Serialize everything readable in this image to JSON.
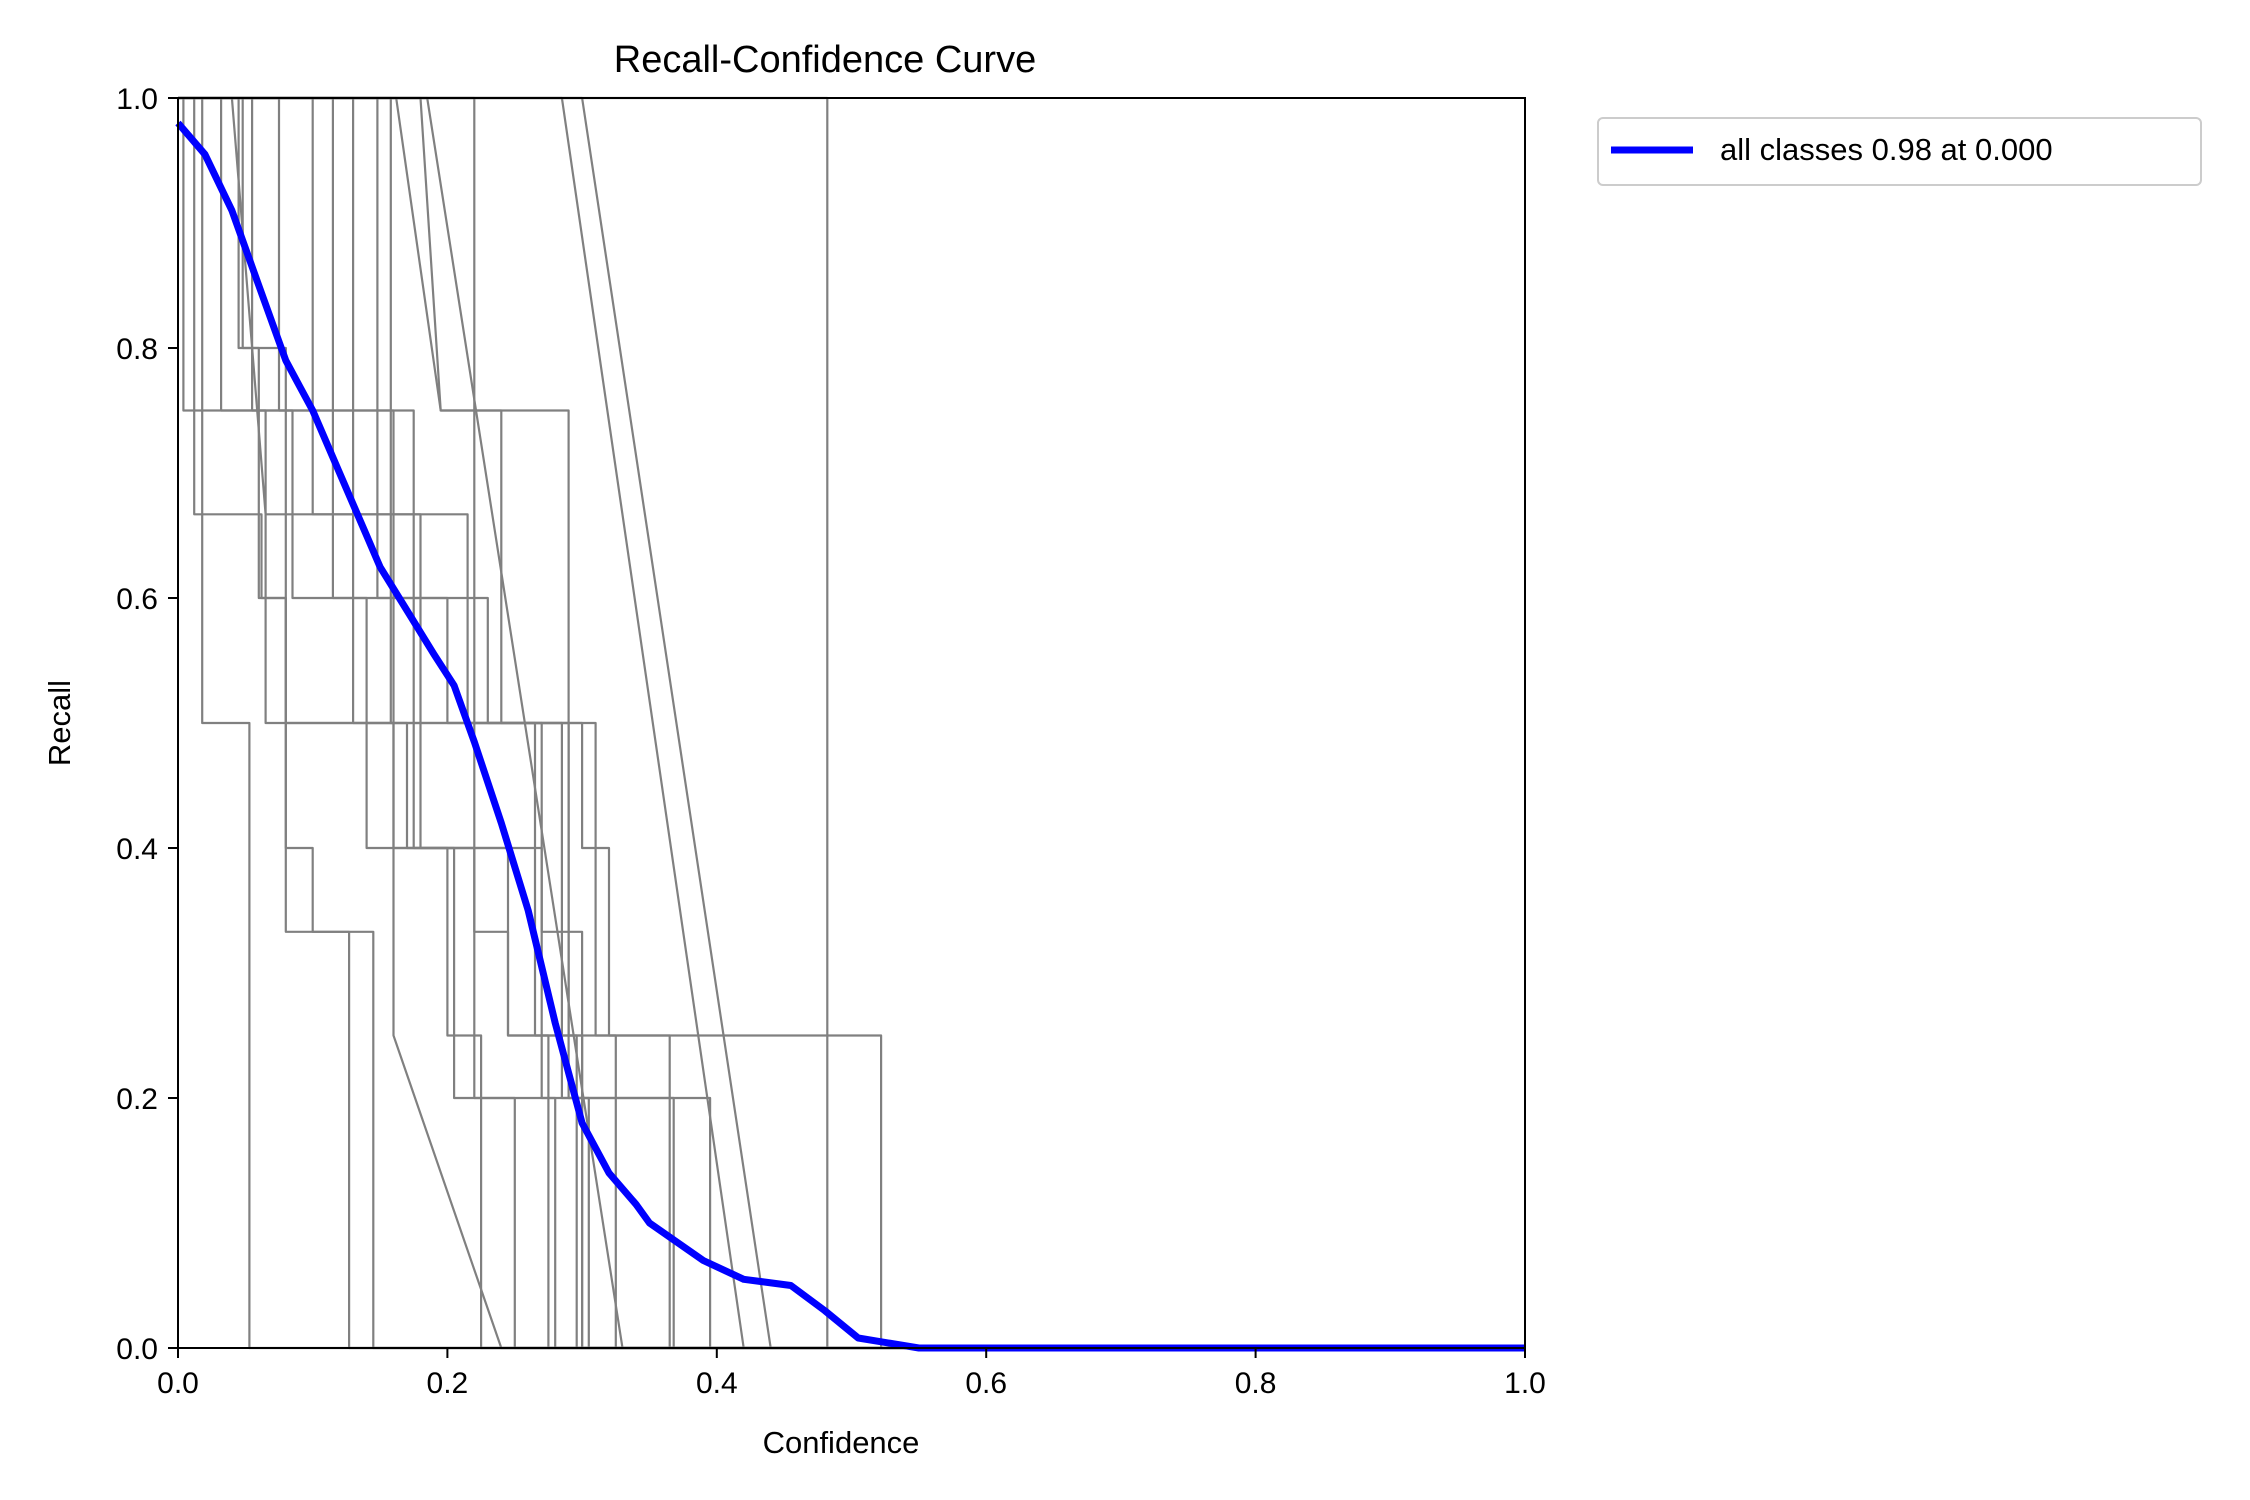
{
  "chart_data": {
    "type": "line",
    "title": "Recall-Confidence Curve",
    "xlabel": "Confidence",
    "ylabel": "Recall",
    "xlim": [
      0,
      1
    ],
    "ylim": [
      0,
      1
    ],
    "x_ticks": [
      "0.0",
      "0.2",
      "0.4",
      "0.6",
      "0.8",
      "1.0"
    ],
    "y_ticks": [
      "0.0",
      "0.2",
      "0.4",
      "0.6",
      "0.8",
      "1.0"
    ],
    "grid": false,
    "legend": {
      "placement": "outside top-right",
      "entries": [
        {
          "label": "all classes 0.98 at 0.000",
          "color": "#0000ff"
        }
      ]
    },
    "colors": {
      "class_curves": "#808080",
      "all_classes": "#0000ff"
    },
    "series": [
      {
        "name": "all classes 0.98 at 0.000",
        "color": "#0000ff",
        "x": [
          0.0,
          0.02,
          0.04,
          0.06,
          0.08,
          0.09,
          0.1,
          0.12,
          0.14,
          0.15,
          0.17,
          0.19,
          0.205,
          0.22,
          0.24,
          0.26,
          0.28,
          0.3,
          0.32,
          0.34,
          0.35,
          0.37,
          0.39,
          0.42,
          0.455,
          0.48,
          0.505,
          0.55,
          1.0
        ],
        "values": [
          0.98,
          0.955,
          0.91,
          0.85,
          0.79,
          0.77,
          0.75,
          0.7,
          0.65,
          0.625,
          0.59,
          0.555,
          0.53,
          0.485,
          0.42,
          0.35,
          0.26,
          0.18,
          0.14,
          0.115,
          0.1,
          0.085,
          0.07,
          0.055,
          0.05,
          0.03,
          0.008,
          0.0,
          0.0
        ]
      },
      {
        "color": "#808080",
        "x": [
          0.0,
          0.008,
          0.018,
          0.018,
          0.053,
          0.053,
          1.0
        ],
        "values": [
          1.0,
          1.0,
          1.0,
          0.5,
          0.5,
          0.0,
          0.0
        ]
      },
      {
        "color": "#808080",
        "x": [
          0.0,
          0.012,
          0.012,
          0.062,
          0.062,
          0.08,
          0.08,
          0.12,
          0.12,
          0.127,
          0.127,
          1.0
        ],
        "values": [
          1.0,
          1.0,
          0.667,
          0.667,
          0.6,
          0.6,
          0.333,
          0.333,
          0.333,
          0.333,
          0.0,
          0.0
        ]
      },
      {
        "color": "#808080",
        "x": [
          0.0,
          0.004,
          0.004,
          0.065,
          0.065,
          0.17,
          0.17,
          0.22,
          0.22,
          0.245,
          0.245,
          0.275,
          0.275,
          1.0
        ],
        "values": [
          1.0,
          1.0,
          0.75,
          0.75,
          0.5,
          0.5,
          0.4,
          0.4,
          0.333,
          0.333,
          0.25,
          0.25,
          0.0,
          0.0
        ]
      },
      {
        "color": "#808080",
        "x": [
          0.0,
          0.025,
          0.025,
          0.045,
          0.045,
          0.06,
          0.06,
          0.08,
          0.08,
          0.1,
          0.1,
          0.145,
          0.145,
          1.0
        ],
        "values": [
          1.0,
          1.0,
          1.0,
          1.0,
          0.8,
          0.8,
          0.6,
          0.6,
          0.4,
          0.4,
          0.333,
          0.333,
          0.0,
          0.0
        ]
      },
      {
        "color": "#808080",
        "x": [
          0.0,
          0.032,
          0.032,
          0.085,
          0.085,
          0.14,
          0.14,
          0.2,
          0.2,
          0.225,
          0.225,
          1.0
        ],
        "values": [
          1.0,
          1.0,
          0.75,
          0.75,
          0.6,
          0.6,
          0.4,
          0.4,
          0.25,
          0.25,
          0.0,
          0.0
        ]
      },
      {
        "color": "#808080",
        "x": [
          0.0,
          0.04,
          0.065,
          0.18,
          0.18,
          0.205,
          0.205,
          0.25,
          0.25,
          1.0
        ],
        "values": [
          1.0,
          1.0,
          0.667,
          0.667,
          0.4,
          0.4,
          0.2,
          0.2,
          0.0,
          0.0
        ]
      },
      {
        "color": "#808080",
        "x": [
          0.0,
          0.048,
          0.048,
          0.08,
          0.08,
          0.16,
          0.16,
          0.24,
          1.0
        ],
        "values": [
          1.0,
          1.0,
          0.8,
          0.8,
          0.5,
          0.5,
          0.25,
          0.0,
          0.0
        ]
      },
      {
        "color": "#808080",
        "x": [
          0.0,
          0.055,
          0.055,
          0.13,
          0.13,
          0.22,
          0.22,
          0.28,
          0.28,
          1.0
        ],
        "values": [
          1.0,
          1.0,
          0.75,
          0.75,
          0.5,
          0.5,
          0.2,
          0.2,
          0.0,
          0.0
        ]
      },
      {
        "color": "#808080",
        "x": [
          0.0,
          0.075,
          0.075,
          0.16,
          0.16,
          0.245,
          0.245,
          0.3,
          0.3,
          1.0
        ],
        "values": [
          1.0,
          1.0,
          0.75,
          0.75,
          0.4,
          0.4,
          0.25,
          0.25,
          0.0,
          0.0
        ]
      },
      {
        "color": "#808080",
        "x": [
          0.0,
          0.1,
          0.1,
          0.215,
          0.215,
          0.27,
          0.27,
          0.3,
          0.3,
          1.0
        ],
        "values": [
          1.0,
          1.0,
          0.667,
          0.667,
          0.5,
          0.5,
          0.333,
          0.333,
          0.0,
          0.0
        ]
      },
      {
        "color": "#808080",
        "x": [
          0.0,
          0.115,
          0.115,
          0.2,
          0.2,
          0.265,
          0.265,
          0.296,
          0.296,
          1.0
        ],
        "values": [
          1.0,
          1.0,
          0.6,
          0.6,
          0.5,
          0.5,
          0.25,
          0.25,
          0.0,
          0.0
        ]
      },
      {
        "color": "#808080",
        "x": [
          0.0,
          0.13,
          0.13,
          0.175,
          0.175,
          0.27,
          0.27,
          0.305,
          0.305,
          1.0
        ],
        "values": [
          1.0,
          1.0,
          0.75,
          0.75,
          0.4,
          0.4,
          0.2,
          0.2,
          0.0,
          0.0
        ]
      },
      {
        "color": "#808080",
        "x": [
          0.0,
          0.148,
          0.148,
          0.23,
          0.23,
          0.29,
          0.29,
          0.325,
          0.325,
          1.0
        ],
        "values": [
          1.0,
          1.0,
          0.6,
          0.6,
          0.5,
          0.5,
          0.25,
          0.25,
          0.0,
          0.0
        ]
      },
      {
        "color": "#808080",
        "x": [
          0.0,
          0.158,
          0.158,
          0.3,
          0.3,
          0.32,
          0.32,
          0.365,
          0.365,
          1.0
        ],
        "values": [
          1.0,
          1.0,
          0.5,
          0.5,
          0.4,
          0.4,
          0.25,
          0.25,
          0.0,
          0.0
        ]
      },
      {
        "color": "#808080",
        "x": [
          0.0,
          0.162,
          0.195,
          0.24,
          0.24,
          0.285,
          0.285,
          0.368,
          0.368,
          1.0
        ],
        "values": [
          1.0,
          1.0,
          0.75,
          0.75,
          0.5,
          0.5,
          0.2,
          0.2,
          0.0,
          0.0
        ]
      },
      {
        "color": "#808080",
        "x": [
          0.0,
          0.18,
          0.195,
          0.29,
          0.29,
          0.395,
          0.395,
          1.0
        ],
        "values": [
          1.0,
          1.0,
          0.75,
          0.75,
          0.2,
          0.2,
          0.0,
          0.0
        ]
      },
      {
        "color": "#808080",
        "x": [
          0.0,
          0.22,
          0.22,
          0.31,
          0.31,
          0.522,
          0.522,
          1.0
        ],
        "values": [
          1.0,
          1.0,
          0.5,
          0.5,
          0.25,
          0.25,
          0.0,
          0.0
        ]
      },
      {
        "color": "#808080",
        "x": [
          0.0,
          0.285,
          0.42,
          1.0
        ],
        "values": [
          1.0,
          1.0,
          0.0,
          0.0
        ]
      },
      {
        "color": "#808080",
        "x": [
          0.0,
          0.3,
          0.44,
          1.0
        ],
        "values": [
          1.0,
          1.0,
          0.0,
          0.0
        ]
      },
      {
        "color": "#808080",
        "x": [
          0.0,
          0.482,
          0.482,
          1.0
        ],
        "values": [
          1.0,
          1.0,
          0.0,
          0.0
        ]
      },
      {
        "color": "#808080",
        "x": [
          0.0,
          0.185,
          0.33,
          1.0
        ],
        "values": [
          1.0,
          1.0,
          0.0,
          0.0
        ]
      }
    ]
  }
}
